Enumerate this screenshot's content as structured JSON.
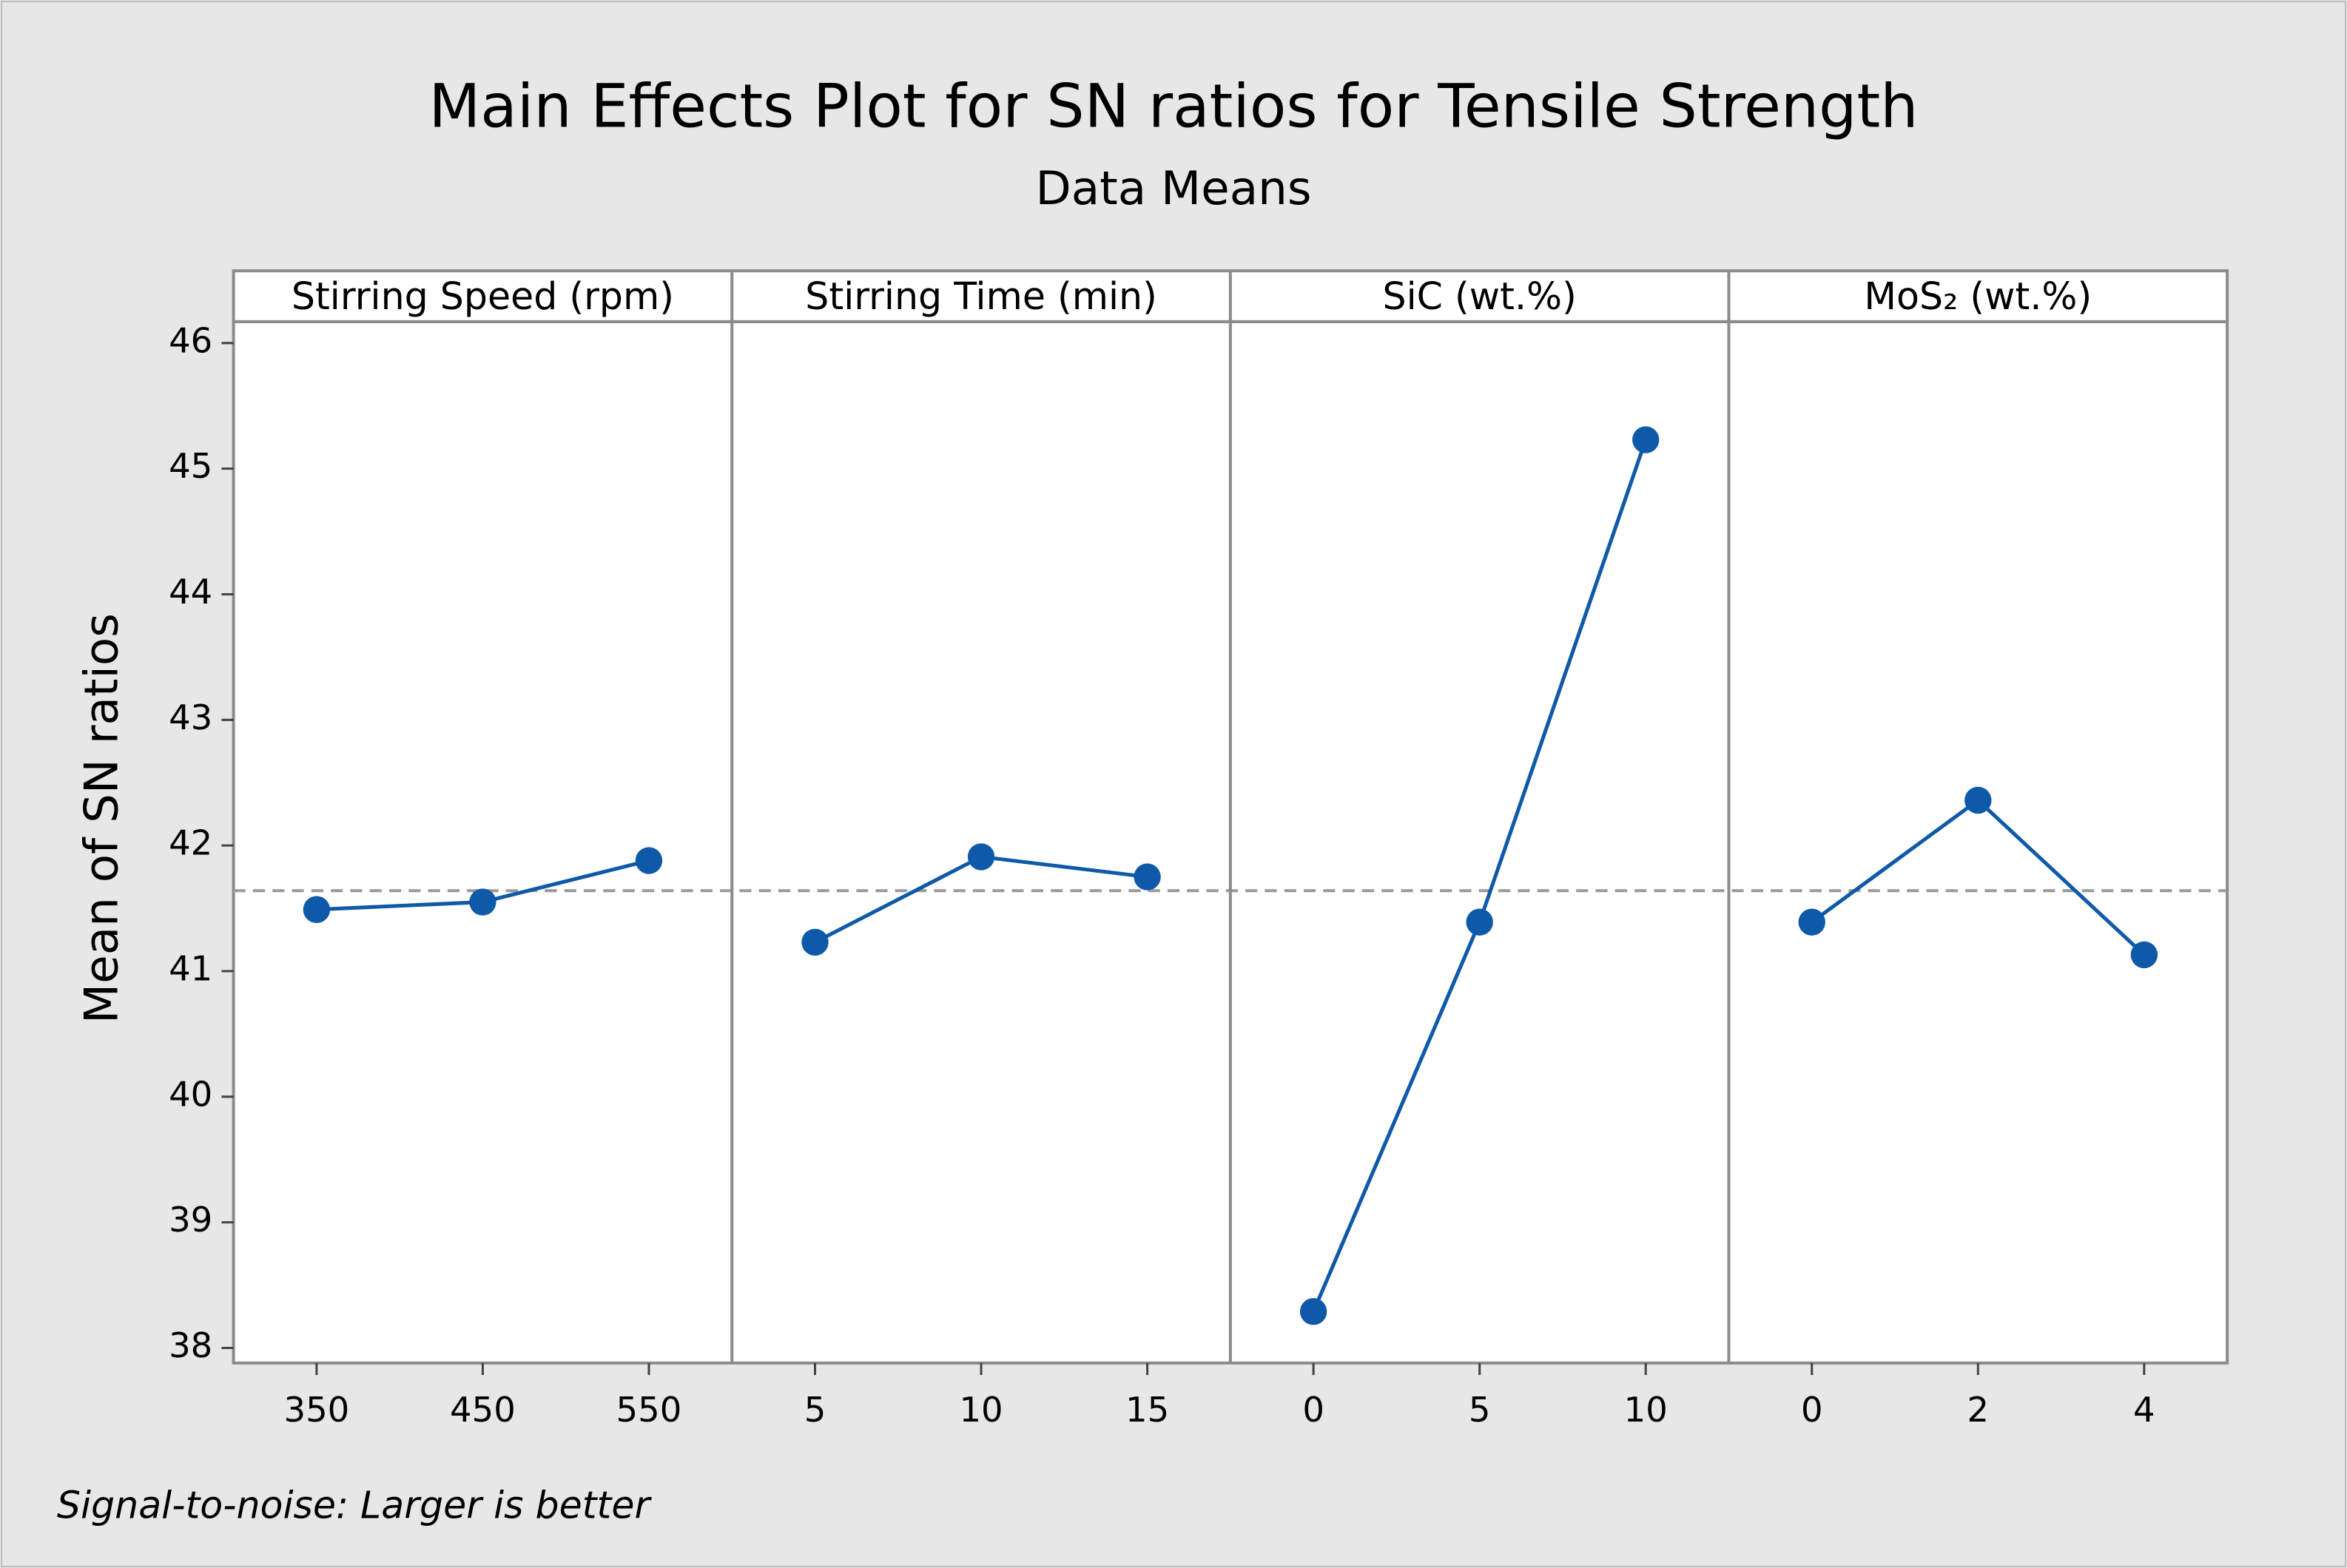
{
  "chart_data": {
    "type": "line",
    "title": "Main Effects Plot for SN ratios for Tensile Strength",
    "subtitle": "Data Means",
    "y_label": "Mean of SN ratios",
    "footnote": "Signal-to-noise: Larger is better",
    "ylim": [
      37.88,
      46.17
    ],
    "yticks": [
      38,
      39,
      40,
      41,
      42,
      43,
      44,
      45,
      46
    ],
    "reference_line": 41.64,
    "color": "#0f5aa8",
    "panels": [
      {
        "title": "Stirring Speed  (rpm)",
        "categories": [
          "350",
          "450",
          "550"
        ],
        "values": [
          41.49,
          41.55,
          41.88
        ]
      },
      {
        "title": "Stirring Time (min)",
        "categories": [
          "5",
          "10",
          "15"
        ],
        "values": [
          41.23,
          41.91,
          41.75
        ]
      },
      {
        "title": "SiC (wt.%)",
        "categories": [
          "0",
          "5",
          "10"
        ],
        "values": [
          38.29,
          41.39,
          45.23
        ]
      },
      {
        "title": "MoS₂ (wt.%)",
        "categories": [
          "0",
          "2",
          "4"
        ],
        "values": [
          41.39,
          42.36,
          41.13
        ]
      }
    ]
  }
}
